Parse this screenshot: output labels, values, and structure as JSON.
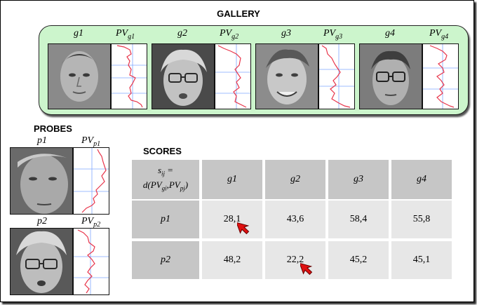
{
  "gallery": {
    "title": "GALLERY",
    "items": [
      {
        "label": "g1",
        "pv_label": "PV",
        "pv_sub": "g1"
      },
      {
        "label": "g2",
        "pv_label": "PV",
        "pv_sub": "g2"
      },
      {
        "label": "g3",
        "pv_label": "PV",
        "pv_sub": "g3"
      },
      {
        "label": "g4",
        "pv_label": "PV",
        "pv_sub": "g4"
      }
    ]
  },
  "probes": {
    "title": "PROBES",
    "items": [
      {
        "label": "p1",
        "pv_label": "PV",
        "pv_sub": "p1"
      },
      {
        "label": "p2",
        "pv_label": "PV",
        "pv_sub": "p2"
      }
    ]
  },
  "scores": {
    "title": "SCORES",
    "corner_line1": "s",
    "corner_line1_sub": "ij",
    "corner_line1_tail": " =",
    "corner_line2": "d(PV",
    "corner_line2_sub1": "gi",
    "corner_line2_mid": ",PV",
    "corner_line2_sub2": "pj",
    "corner_line2_tail": ")",
    "columns": [
      "g1",
      "g2",
      "g3",
      "g4"
    ],
    "rows": [
      {
        "label": "p1",
        "values": [
          "28,1",
          "43,6",
          "58,4",
          "55,8"
        ],
        "min_col": 0
      },
      {
        "label": "p2",
        "values": [
          "48,2",
          "22,2",
          "45,2",
          "45,1"
        ],
        "min_col": 1
      }
    ]
  },
  "colors": {
    "panel_bg": "#ccf5cc",
    "curve": "#e8344a",
    "grid": "#7fa6ff",
    "pointer": "#e01010"
  }
}
